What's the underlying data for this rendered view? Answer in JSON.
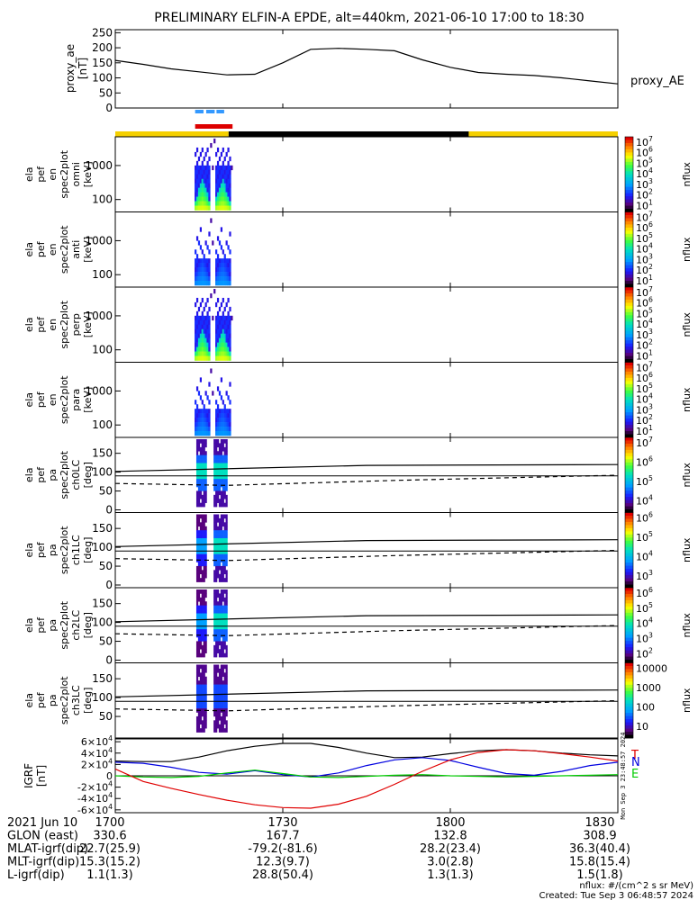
{
  "title": "PRELIMINARY ELFIN-A EPDE, alt=440km, 2021-06-10 17:00 to 18:30",
  "time_range_min": [
    0,
    90
  ],
  "time_ticks": [
    {
      "t": 0,
      "label": "1700"
    },
    {
      "t": 30,
      "label": "1730"
    },
    {
      "t": 60,
      "label": "1800"
    },
    {
      "t": 90,
      "label": "1830"
    }
  ],
  "ae_panel": {
    "ylabel": [
      "proxy_ae",
      "[nT]"
    ],
    "yticks": [
      "0",
      "50",
      "100",
      "150",
      "200",
      "250"
    ],
    "ylim": [
      0,
      260
    ],
    "series_label": "proxy_AE"
  },
  "spec_panels": [
    {
      "ylabel": [
        "ela",
        "pef",
        "en",
        "spec2plot",
        "omni",
        "[keV]"
      ],
      "yticks": [
        "100",
        "1000"
      ],
      "kind": "energy",
      "variant": "omni"
    },
    {
      "ylabel": [
        "ela",
        "pef",
        "en",
        "spec2plot",
        "anti",
        "[keV]"
      ],
      "yticks": [
        "100",
        "1000"
      ],
      "kind": "energy",
      "variant": "anti"
    },
    {
      "ylabel": [
        "ela",
        "pef",
        "en",
        "spec2plot",
        "perp",
        "[keV]"
      ],
      "yticks": [
        "100",
        "1000"
      ],
      "kind": "energy",
      "variant": "perp"
    },
    {
      "ylabel": [
        "ela",
        "pef",
        "en",
        "spec2plot",
        "para",
        "[keV]"
      ],
      "yticks": [
        "100",
        "1000"
      ],
      "kind": "energy",
      "variant": "para"
    },
    {
      "ylabel": [
        "ela",
        "pef",
        "pa",
        "spec2plot",
        "ch0LC",
        "[deg]"
      ],
      "yticks": [
        "0",
        "50",
        "100",
        "150"
      ],
      "kind": "pitch",
      "variant": "ch0"
    },
    {
      "ylabel": [
        "ela",
        "pef",
        "pa",
        "spec2plot",
        "ch1LC",
        "[deg]"
      ],
      "yticks": [
        "0",
        "50",
        "100",
        "150"
      ],
      "kind": "pitch",
      "variant": "ch1"
    },
    {
      "ylabel": [
        "ela",
        "pef",
        "pa",
        "spec2plot",
        "ch2LC",
        "[deg]"
      ],
      "yticks": [
        "0",
        "50",
        "100",
        "150"
      ],
      "kind": "pitch",
      "variant": "ch2"
    },
    {
      "ylabel": [
        "ela",
        "pef",
        "pa",
        "spec2plot",
        "ch3LC",
        "[deg]"
      ],
      "yticks": [
        "50",
        "100",
        "150"
      ],
      "kind": "pitch",
      "variant": "ch3"
    }
  ],
  "colorbars": [
    {
      "label": "nflux",
      "ticks": [
        "10^7",
        "10^6",
        "10^5",
        "10^4",
        "10^3",
        "10^2",
        "10^1"
      ]
    },
    {
      "label": "nflux",
      "ticks": [
        "10^7",
        "10^6",
        "10^5",
        "10^4",
        "10^3",
        "10^2",
        "10^1"
      ]
    },
    {
      "label": "nflux",
      "ticks": [
        "10^7",
        "10^6",
        "10^5",
        "10^4",
        "10^3",
        "10^2",
        "10^1"
      ]
    },
    {
      "label": "nflux",
      "ticks": [
        "10^7",
        "10^6",
        "10^5",
        "10^4",
        "10^3",
        "10^2",
        "10^1"
      ]
    },
    {
      "label": "nflux",
      "ticks": [
        "10^7",
        "10^6",
        "10^5",
        "10^4"
      ]
    },
    {
      "label": "nflux",
      "ticks": [
        "10^6",
        "10^5",
        "10^4",
        "10^3"
      ]
    },
    {
      "label": "nflux",
      "ticks": [
        "10^6",
        "10^5",
        "10^4",
        "10^3",
        "10^2"
      ]
    },
    {
      "label": "nflux",
      "ticks": [
        "10000",
        "1000",
        "100",
        "10"
      ]
    }
  ],
  "igrf_panel": {
    "ylabel": [
      "IGRF",
      "[nT]"
    ],
    "yticks": [
      "6×10^4",
      "4×10^4",
      "2×10^4",
      "0",
      "-2×10^4",
      "-4×10^4",
      "-6×10^4"
    ],
    "ylim": [
      -65000,
      65000
    ],
    "series": [
      {
        "name": "T",
        "color": "#e00000"
      },
      {
        "name": "N",
        "color": "#0000e0"
      },
      {
        "name": "E",
        "color": "#00cc00"
      }
    ],
    "side_text": "Mon Sep  3 23:48:57 2024"
  },
  "footer_rows": [
    {
      "label": "2021 Jun 10",
      "values": [
        "1700",
        "1730",
        "1800",
        "1830"
      ]
    },
    {
      "label": "GLON (east)",
      "values": [
        "330.6",
        "167.7",
        "132.8",
        "308.9"
      ]
    },
    {
      "label": "MLAT-igrf(dip)",
      "values": [
        "22.7(25.9)",
        "-79.2(-81.6)",
        "28.2(23.4)",
        "36.3(40.4)"
      ]
    },
    {
      "label": "MLT-igrf(dip)",
      "values": [
        "15.3(15.2)",
        "12.3(9.7)",
        "3.0(2.8)",
        "15.8(15.4)"
      ]
    },
    {
      "label": "L-igrf(dip)",
      "values": [
        "1.1(1.3)",
        "28.8(50.4)",
        "1.3(1.3)",
        "1.5(1.8)"
      ]
    }
  ],
  "units_note": "nflux: #/(cm^2 s sr MeV)",
  "created_note": "Created: Tue Sep  3 06:48:57 2024",
  "chart_data": {
    "type": "line",
    "title": "PRELIMINARY ELFIN-A EPDE, alt=440km, 2021-06-10 17:00 to 18:30",
    "x_units": "minutes after 2021-06-10 17:00",
    "proxy_ae": {
      "x": [
        0,
        5,
        10,
        15,
        20,
        25,
        30,
        35,
        40,
        45,
        50,
        55,
        60,
        65,
        70,
        75,
        80,
        85,
        90
      ],
      "y": [
        158,
        145,
        130,
        120,
        110,
        112,
        150,
        195,
        198,
        195,
        190,
        160,
        135,
        118,
        112,
        108,
        100,
        90,
        80
      ]
    },
    "igrf": {
      "x": [
        0,
        5,
        10,
        15,
        20,
        25,
        30,
        35,
        40,
        45,
        50,
        55,
        60,
        65,
        70,
        75,
        80,
        85,
        90
      ],
      "T": [
        12000,
        -10000,
        -22000,
        -33000,
        -43000,
        -51000,
        -56000,
        -57000,
        -50000,
        -36000,
        -15000,
        8000,
        28000,
        41000,
        46000,
        44000,
        39000,
        33000,
        26000
      ],
      "N": [
        24000,
        22000,
        15000,
        6000,
        3000,
        9000,
        2000,
        -2000,
        5000,
        18000,
        28000,
        32000,
        27000,
        15000,
        4000,
        1000,
        8000,
        18000,
        24000
      ],
      "E": [
        0,
        -2000,
        -3000,
        -1000,
        5000,
        10000,
        4000,
        -2000,
        -3000,
        -1000,
        1000,
        2000,
        0,
        -1000,
        -2000,
        -1000,
        0,
        1000,
        2000
      ],
      "total": [
        26000,
        25000,
        25000,
        33000,
        44000,
        52000,
        57000,
        57000,
        50000,
        40000,
        32000,
        33000,
        39000,
        44000,
        46000,
        44000,
        40000,
        37000,
        35000
      ]
    }
  }
}
